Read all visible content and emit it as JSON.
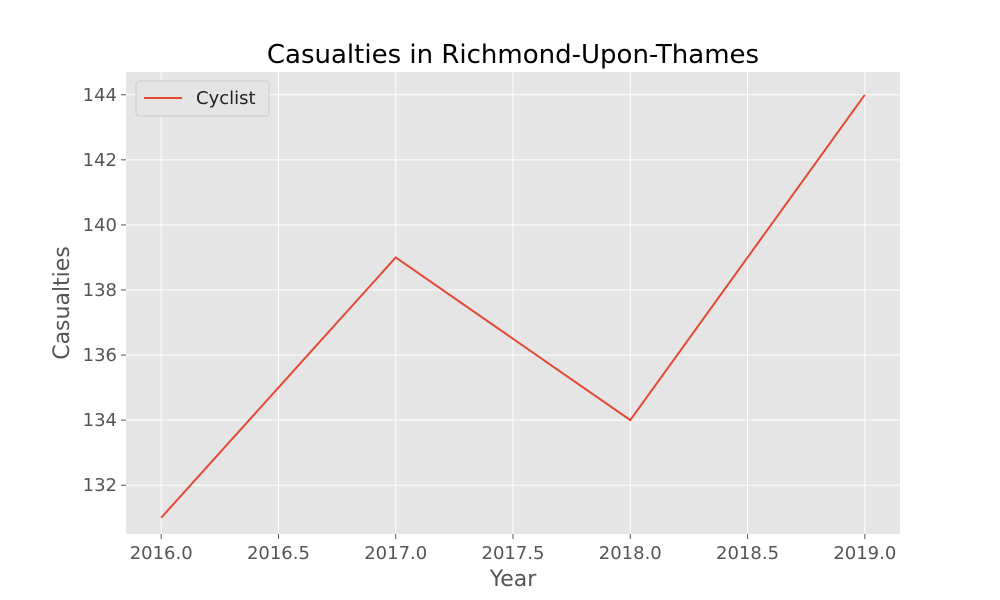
{
  "chart_data": {
    "type": "line",
    "title": "Casualties in Richmond-Upon-Thames",
    "xlabel": "Year",
    "ylabel": "Casualties",
    "x": [
      2016,
      2017,
      2018,
      2019
    ],
    "series": [
      {
        "name": "Cyclist",
        "values": [
          131,
          139,
          134,
          144
        ],
        "color": "#E24A33"
      }
    ],
    "xlim": [
      2015.85,
      2019.15
    ],
    "ylim": [
      130.5,
      144.7
    ],
    "x_ticks": [
      "2016.0",
      "2016.5",
      "2017.0",
      "2017.5",
      "2018.0",
      "2018.5",
      "2019.0"
    ],
    "x_tick_values": [
      2016.0,
      2016.5,
      2017.0,
      2017.5,
      2018.0,
      2018.5,
      2019.0
    ],
    "y_ticks": [
      "132",
      "134",
      "136",
      "138",
      "140",
      "142",
      "144"
    ],
    "y_tick_values": [
      132,
      134,
      136,
      138,
      140,
      142,
      144
    ],
    "grid": true,
    "legend_position": "top-left",
    "colors": {
      "plot_background": "#E5E5E5",
      "grid": "#FFFFFF",
      "tick_text": "#555555"
    }
  }
}
